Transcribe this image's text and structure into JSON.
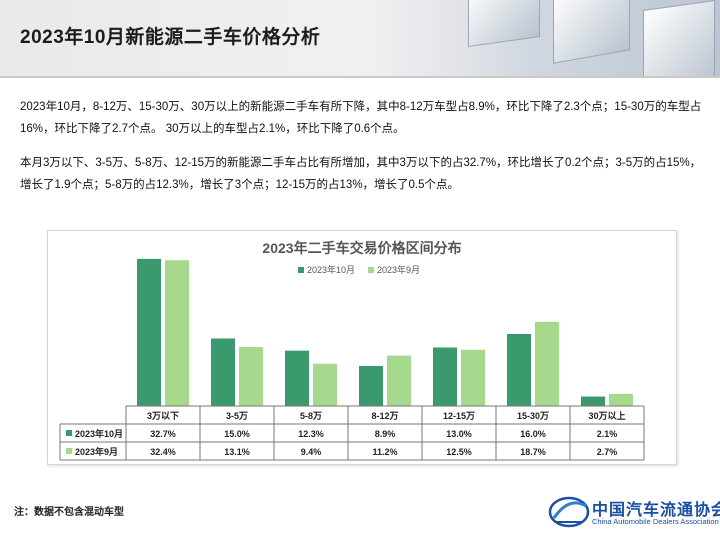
{
  "page": {
    "title": "2023年10月新能源二手车价格分析",
    "paragraph1": "2023年10月，8-12万、15-30万、30万以上的新能源二手车有所下降，其中8-12万车型占8.9%，环比下降了2.3个点；15-30万的车型占16%，环比下降了2.7个点。 30万以上的车型占2.1%，环比下降了0.6个点。",
    "paragraph2": "本月3万以下、3-5万、5-8万、12-15万的新能源二手车占比有所增加，其中3万以下的占32.7%，环比增长了0.2个点；3-5万的占15%，增长了1.9个点；5-8万的占12.3%，增长了3个点；12-15万的占13%，增长了0.5个点。",
    "note": "注：数据不包含混动车型",
    "logo_cn": "中国汽车流通协会",
    "logo_en": "China Automobile Dealers Association"
  },
  "chart_data": {
    "type": "bar",
    "title": "2023年二手车交易价格区间分布",
    "categories": [
      "3万以下",
      "3-5万",
      "5-8万",
      "8-12万",
      "12-15万",
      "15-30万",
      "30万以上"
    ],
    "series": [
      {
        "name": "2023年10月",
        "values": [
          32.7,
          15.0,
          12.3,
          8.9,
          13.0,
          16.0,
          2.1
        ],
        "labels": [
          "32.7%",
          "15.0%",
          "12.3%",
          "8.9%",
          "13.0%",
          "16.0%",
          "2.1%"
        ],
        "color": "#3a9a6e"
      },
      {
        "name": "2023年9月",
        "values": [
          32.4,
          13.1,
          9.4,
          11.2,
          12.5,
          18.7,
          2.7
        ],
        "labels": [
          "32.4%",
          "13.1%",
          "9.4%",
          "11.2%",
          "12.5%",
          "18.7%",
          "2.7%"
        ],
        "color": "#a6d98e"
      }
    ],
    "ylim": [
      0,
      34
    ],
    "legend": "top",
    "grid": false
  }
}
